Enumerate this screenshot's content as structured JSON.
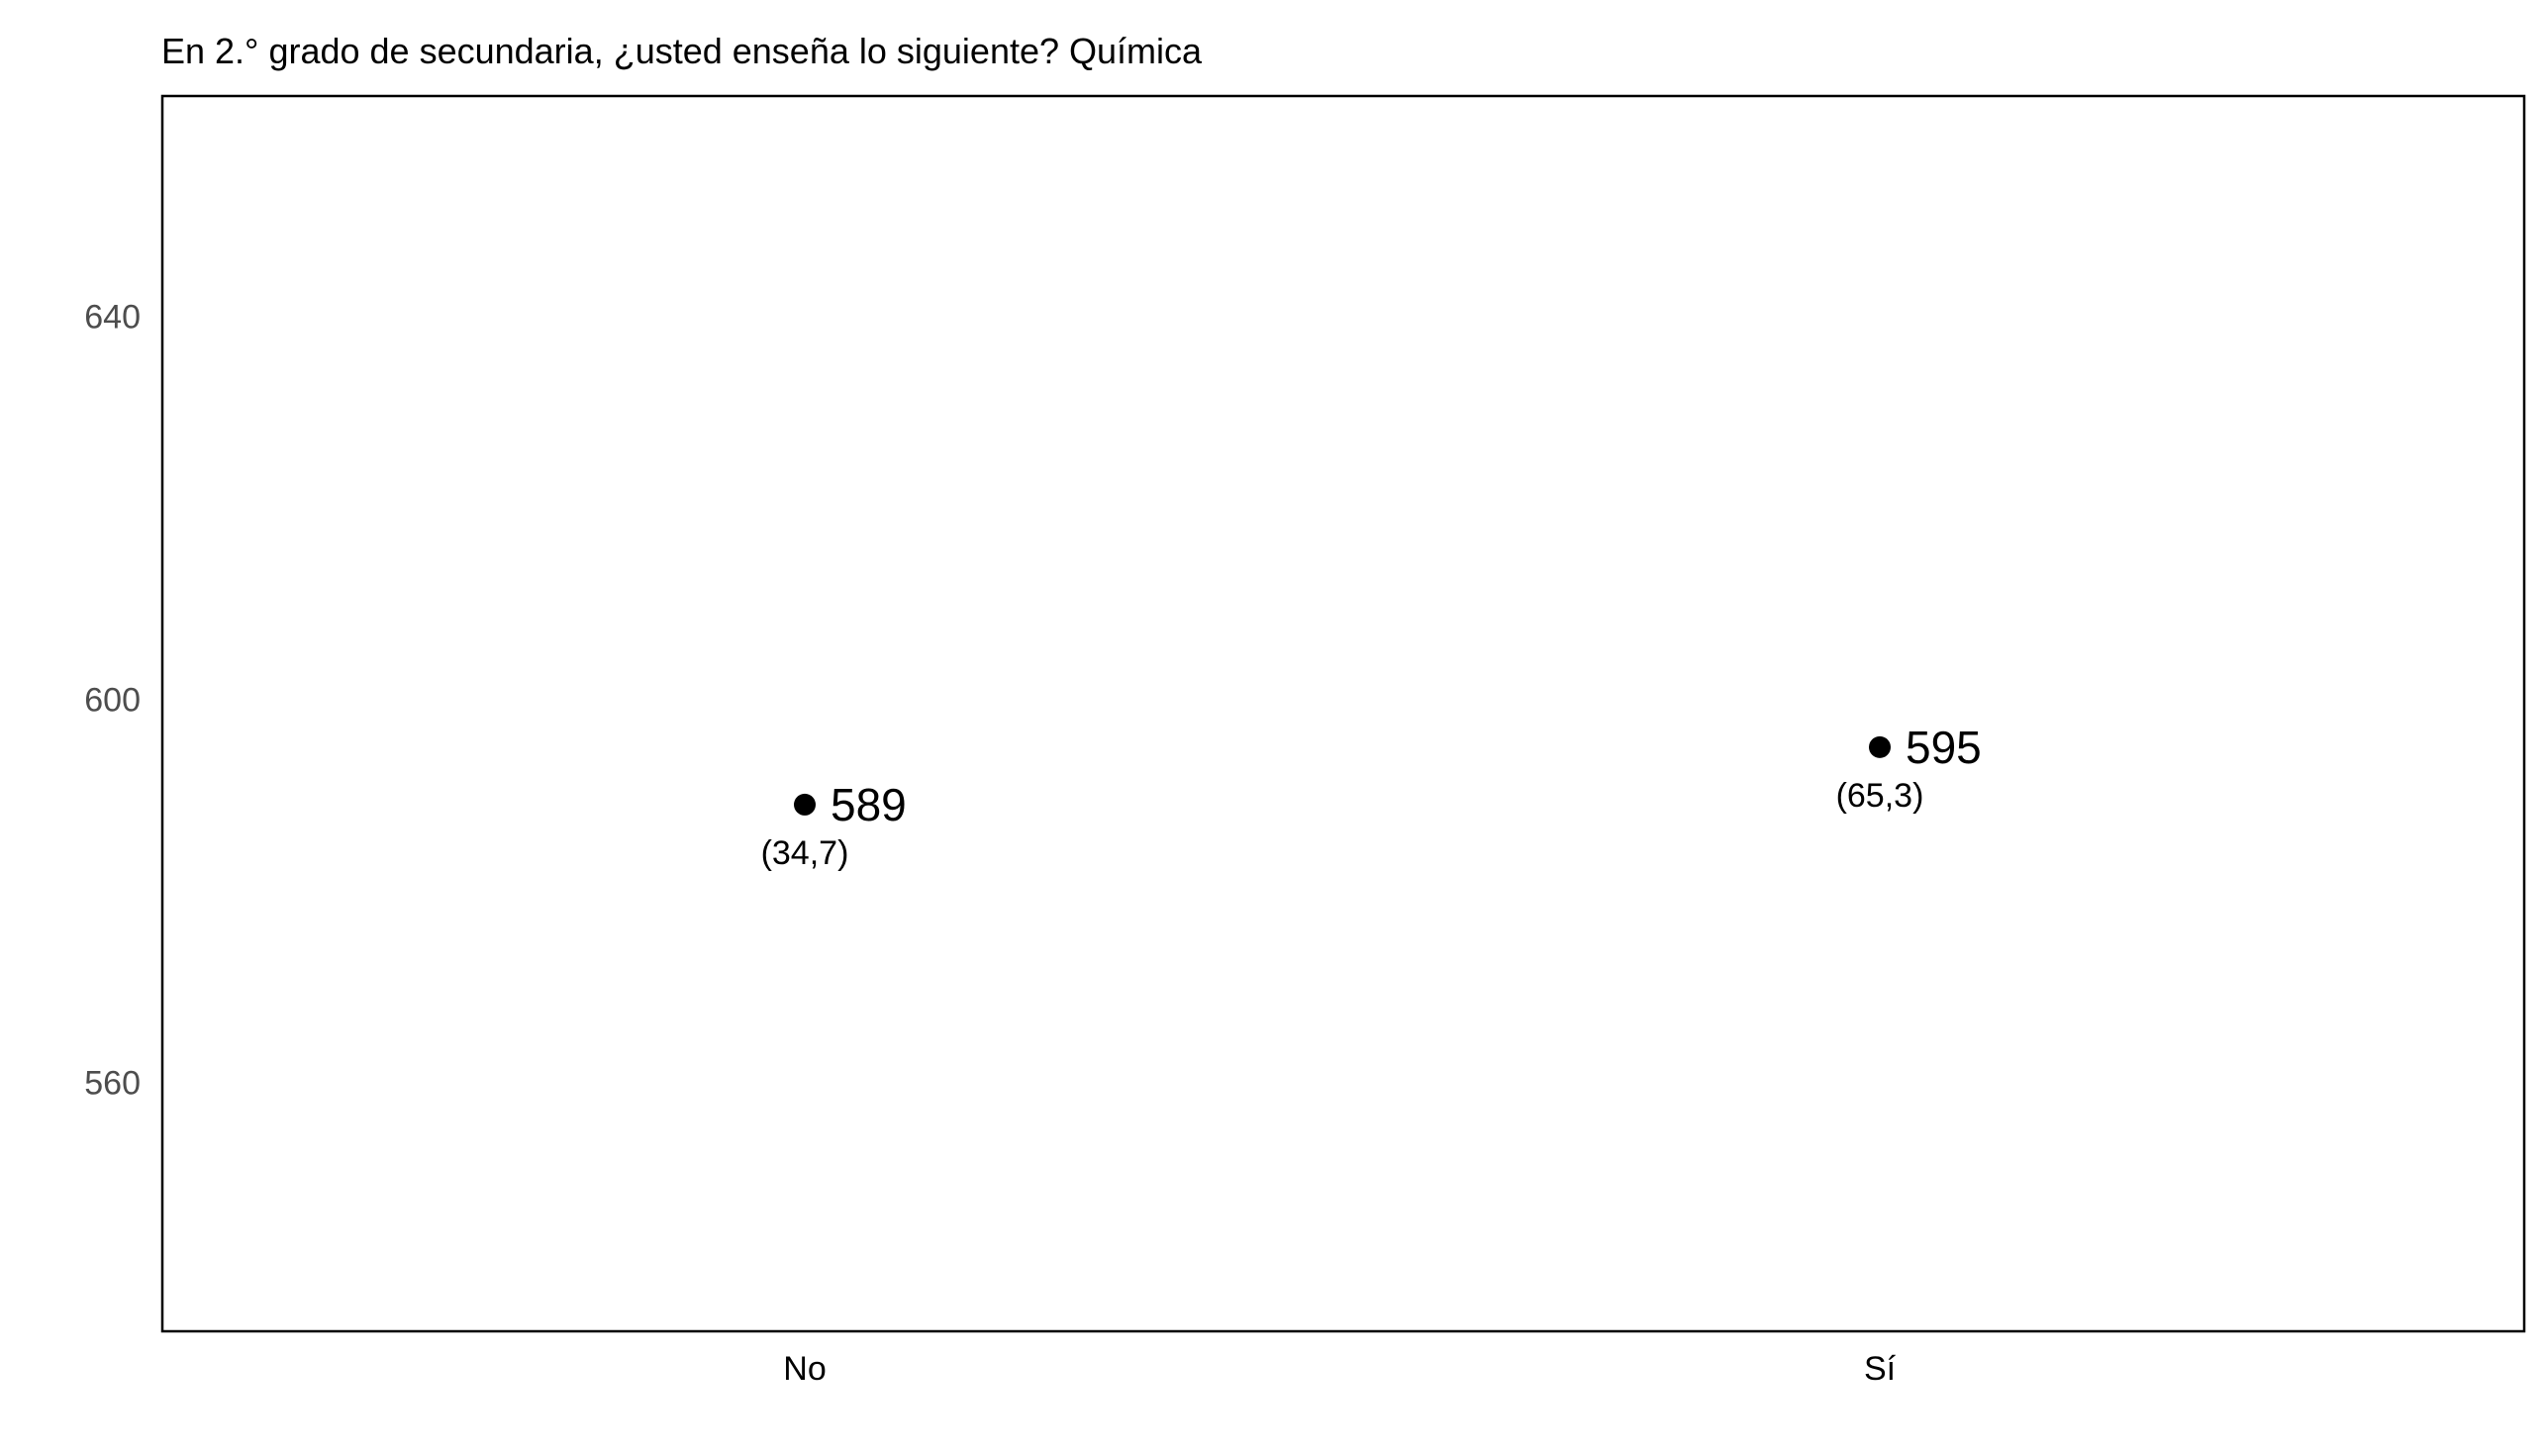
{
  "chart_data": {
    "type": "scatter",
    "title": "En 2.° grado de secundaria, ¿usted enseña lo siguiente? Química",
    "xlabel": "",
    "ylabel": "",
    "categories": [
      "No",
      "Sí"
    ],
    "values": [
      589,
      595
    ],
    "value_labels": [
      "589",
      "595"
    ],
    "percent_labels": [
      "(34,7)",
      "(65,3)"
    ],
    "ylim": [
      534,
      663
    ],
    "yticks": [
      560,
      600,
      640
    ],
    "grid": false,
    "point_color": "#000000"
  }
}
